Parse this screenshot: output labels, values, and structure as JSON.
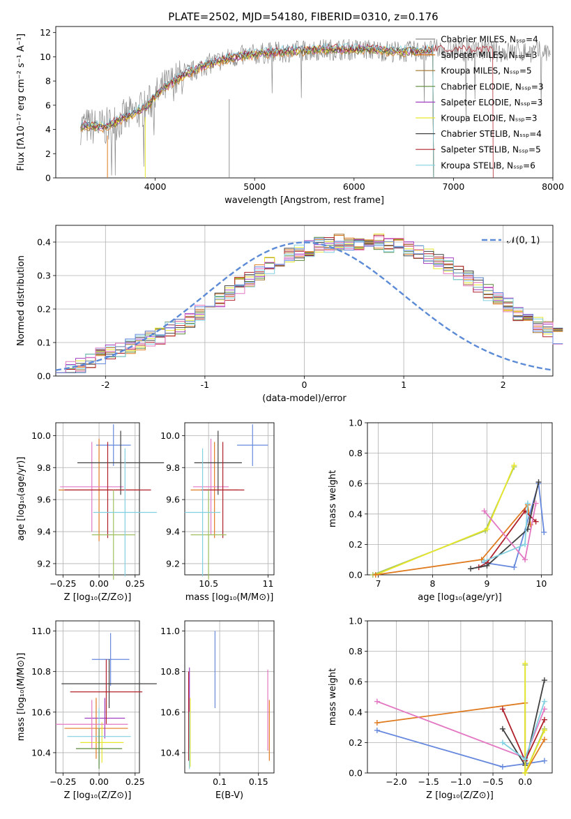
{
  "figure_title": "PLATE=2502, MJD=54180, FIBERID=0310, z=0.176",
  "series_colors": [
    "#888888",
    "#e07a1f",
    "#a0702a",
    "#5a8a3a",
    "#a040c0",
    "#e6e62a",
    "#404040",
    "#b0202a",
    "#80d0e0"
  ],
  "chart_data": [
    {
      "type": "line",
      "id": "spectrum",
      "xlabel": "wavelength [Angstrom, rest frame]",
      "ylabel": "Flux [fλ10⁻¹⁷ erg cm⁻² s⁻¹ A⁻¹]",
      "xlim": [
        3000,
        8000
      ],
      "ylim": [
        0,
        12.5
      ],
      "xticks": [
        4000,
        5000,
        6000,
        7000,
        8000
      ],
      "yticks": [
        0,
        2,
        4,
        6,
        8,
        10,
        12
      ],
      "grid": false,
      "legend_position": "top-right",
      "legend": [
        "Chabrier MILES, Nₛₛₚ=4",
        "Salpeter MILES, Nₛₛₚ=3",
        "Kroupa MILES, Nₛₛₚ=5",
        "Chabrier ELODIE, Nₛₛₚ=3",
        "Salpeter ELODIE, Nₛₛₚ=3",
        "Kroupa ELODIE, Nₛₛₚ=3",
        "Chabrier STELIB, Nₛₛₚ=4",
        "Salpeter STELIB, Nₛₛₚ=5",
        "Kroupa STELIB, Nₛₛₚ=6"
      ],
      "envelope": {
        "x": [
          3250,
          3500,
          3700,
          3900,
          4100,
          4300,
          4500,
          4700,
          4900,
          5100,
          5300,
          5500,
          5700,
          5900,
          6100,
          6300,
          6500,
          6700,
          6900,
          7100,
          7300,
          7500
        ],
        "y": [
          4.3,
          4.2,
          5.0,
          5.8,
          7.5,
          8.5,
          9.3,
          9.8,
          10.1,
          10.3,
          10.4,
          10.5,
          10.6,
          10.6,
          10.6,
          10.5,
          10.4,
          10.5,
          10.6,
          10.5,
          10.5,
          10.4
        ]
      },
      "model_ends": [
        7350,
        6800,
        6800,
        6800,
        6800,
        6800,
        6800,
        7400,
        6800
      ]
    },
    {
      "type": "bar",
      "id": "residuals",
      "xlabel": "(data-model)/error",
      "ylabel": "Normed distribution",
      "xlim": [
        -2.5,
        2.5
      ],
      "ylim": [
        0,
        0.45
      ],
      "xticks": [
        -2,
        -1,
        0,
        1,
        2
      ],
      "yticks": [
        0.0,
        0.1,
        0.2,
        0.3,
        0.4
      ],
      "grid": true,
      "legend_position": "top-right",
      "legend": [
        "𝒩(0, 1)"
      ],
      "reference_curve": "gaussian(0,1)",
      "bin_width": 0.1,
      "histogram": [
        0.02,
        0.02,
        0.03,
        0.05,
        0.06,
        0.07,
        0.08,
        0.09,
        0.1,
        0.11,
        0.12,
        0.14,
        0.15,
        0.17,
        0.19,
        0.21,
        0.23,
        0.25,
        0.27,
        0.29,
        0.31,
        0.33,
        0.34,
        0.36,
        0.37,
        0.38,
        0.39,
        0.39,
        0.4,
        0.4,
        0.4,
        0.4,
        0.4,
        0.39,
        0.39,
        0.38,
        0.37,
        0.36,
        0.34,
        0.33,
        0.31,
        0.29,
        0.27,
        0.25,
        0.23,
        0.21,
        0.19,
        0.17,
        0.15,
        0.14,
        0.12
      ]
    },
    {
      "type": "scatter",
      "id": "age_vs_Z",
      "xlabel": "Z [log₁₀(Z/Z⊙)]",
      "ylabel": "age  [log₁₀(age/yr)]",
      "xlim": [
        -0.3,
        0.28
      ],
      "ylim": [
        9.13,
        10.08
      ],
      "xticks": [
        -0.25,
        0.0,
        0.25
      ],
      "xtick_labels": [
        "−0.25",
        "0.00",
        "0.25"
      ],
      "yticks": [
        9.2,
        9.4,
        9.6,
        9.8,
        10.0
      ],
      "grid": true,
      "points": [
        {
          "x": 0.1,
          "y": 9.94,
          "xerr": 0.12,
          "yerr": 0.13,
          "color": "#6688dd"
        },
        {
          "x": 0.0,
          "y": 9.66,
          "xerr": 0.28,
          "yerr": 0.32,
          "color": "#e07a1f"
        },
        {
          "x": -0.05,
          "y": 9.68,
          "xerr": 0.22,
          "yerr": 0.28,
          "color": "#e377c2"
        },
        {
          "x": 0.15,
          "y": 9.83,
          "xerr": 0.3,
          "yerr": 0.2,
          "color": "#404040"
        },
        {
          "x": 0.06,
          "y": 9.66,
          "xerr": 0.3,
          "yerr": 0.3,
          "color": "#b0202a"
        },
        {
          "x": 0.1,
          "y": 9.38,
          "xerr": 0.15,
          "yerr": 0.28,
          "color": "#a0c060"
        },
        {
          "x": 0.18,
          "y": 9.52,
          "xerr": 0.22,
          "yerr": 0.4,
          "color": "#80d0e0"
        }
      ]
    },
    {
      "type": "scatter",
      "id": "age_vs_mass",
      "xlabel": "mass [log₁₀(M/M⊙)]",
      "ylabel": "",
      "xlim": [
        10.3,
        11.05
      ],
      "ylim": [
        9.13,
        10.08
      ],
      "xticks": [
        10.5,
        11.0
      ],
      "yticks": [
        9.2,
        9.4,
        9.6,
        9.8,
        10.0
      ],
      "grid": true,
      "points": [
        {
          "x": 10.87,
          "y": 9.94,
          "xerr": 0.13,
          "yerr": 0.13,
          "color": "#6688dd"
        },
        {
          "x": 10.55,
          "y": 9.66,
          "xerr": 0.2,
          "yerr": 0.3,
          "color": "#e07a1f"
        },
        {
          "x": 10.52,
          "y": 9.68,
          "xerr": 0.15,
          "yerr": 0.3,
          "color": "#e377c2"
        },
        {
          "x": 10.58,
          "y": 9.83,
          "xerr": 0.2,
          "yerr": 0.2,
          "color": "#404040"
        },
        {
          "x": 10.62,
          "y": 9.66,
          "xerr": 0.18,
          "yerr": 0.3,
          "color": "#b0202a"
        },
        {
          "x": 10.5,
          "y": 9.38,
          "xerr": 0.15,
          "yerr": 0.28,
          "color": "#a0c060"
        },
        {
          "x": 10.45,
          "y": 9.52,
          "xerr": 0.15,
          "yerr": 0.4,
          "color": "#80d0e0"
        }
      ]
    },
    {
      "type": "line",
      "id": "weight_vs_age",
      "xlabel": "age  [log₁₀(age/yr)]",
      "ylabel": "mass weight",
      "xlim": [
        6.8,
        10.2
      ],
      "ylim": [
        0,
        1.0
      ],
      "xticks": [
        7,
        8,
        9,
        10
      ],
      "yticks": [
        0.0,
        0.2,
        0.4,
        0.6,
        0.8,
        1.0
      ],
      "grid": true,
      "series": [
        {
          "color": "#a0c060",
          "x": [
            6.9,
            8.97,
            9.5
          ],
          "y": [
            0.0,
            0.29,
            0.71
          ]
        },
        {
          "color": "#e6e62a",
          "x": [
            6.95,
            9.0,
            9.5
          ],
          "y": [
            0.0,
            0.3,
            0.72
          ]
        },
        {
          "color": "#e07a1f",
          "x": [
            6.95,
            8.9,
            9.75,
            9.8
          ],
          "y": [
            0.0,
            0.1,
            0.46,
            0.33
          ]
        },
        {
          "color": "#6688dd",
          "x": [
            8.95,
            9.5,
            9.95,
            10.05
          ],
          "y": [
            0.08,
            0.05,
            0.6,
            0.28
          ]
        },
        {
          "color": "#b0202a",
          "x": [
            8.85,
            9.0,
            9.7,
            9.9
          ],
          "y": [
            0.05,
            0.08,
            0.42,
            0.35
          ]
        },
        {
          "color": "#404040",
          "x": [
            8.7,
            9.0,
            9.75,
            9.95
          ],
          "y": [
            0.04,
            0.06,
            0.3,
            0.61
          ]
        },
        {
          "color": "#e377c2",
          "x": [
            8.95,
            9.7,
            9.9
          ],
          "y": [
            0.42,
            0.1,
            0.47
          ]
        },
        {
          "color": "#80d0e0",
          "x": [
            8.95,
            9.7,
            9.75
          ],
          "y": [
            0.09,
            0.2,
            0.47
          ]
        }
      ]
    },
    {
      "type": "scatter",
      "id": "mass_vs_Z",
      "xlabel": "Z [log₁₀(Z/Z⊙)]",
      "ylabel": "mass [log₁₀(M/M⊙)]",
      "xlim": [
        -0.3,
        0.28
      ],
      "ylim": [
        10.3,
        11.05
      ],
      "xticks": [
        -0.25,
        0.0,
        0.25
      ],
      "xtick_labels": [
        "−0.25",
        "0.00",
        "0.25"
      ],
      "yticks": [
        10.4,
        10.6,
        10.8,
        11.0
      ],
      "grid": true,
      "points": [
        {
          "x": 0.08,
          "y": 10.86,
          "xerr": 0.13,
          "yerr": 0.13,
          "color": "#6688dd"
        },
        {
          "x": -0.02,
          "y": 10.52,
          "xerr": 0.22,
          "yerr": 0.15,
          "color": "#e07a1f"
        },
        {
          "x": 0.04,
          "y": 10.57,
          "xerr": 0.14,
          "yerr": 0.1,
          "color": "#a040c0"
        },
        {
          "x": 0.07,
          "y": 10.74,
          "xerr": 0.33,
          "yerr": 0.12,
          "color": "#404040"
        },
        {
          "x": 0.05,
          "y": 10.7,
          "xerr": 0.25,
          "yerr": 0.16,
          "color": "#b0202a"
        },
        {
          "x": 0.02,
          "y": 10.45,
          "xerr": 0.15,
          "yerr": 0.1,
          "color": "#e6e62a"
        },
        {
          "x": 0.0,
          "y": 10.48,
          "xerr": 0.22,
          "yerr": 0.14,
          "color": "#80d0e0"
        },
        {
          "x": 0.0,
          "y": 10.42,
          "xerr": 0.16,
          "yerr": 0.1,
          "color": "#5a8a3a"
        },
        {
          "x": -0.05,
          "y": 10.54,
          "xerr": 0.25,
          "yerr": 0.12,
          "color": "#e377c2"
        }
      ]
    },
    {
      "type": "scatter",
      "id": "mass_vs_ebv",
      "xlabel": "E(B-V)",
      "ylabel": "",
      "xlim": [
        0.055,
        0.17
      ],
      "ylim": [
        10.3,
        11.05
      ],
      "xticks": [
        0.1,
        0.15
      ],
      "yticks": [
        10.4,
        10.6,
        10.8,
        11.0
      ],
      "grid": true,
      "points": [
        {
          "x": 0.094,
          "y": 10.81,
          "xerr": 0,
          "yerr": 0.19,
          "color": "#6688dd"
        },
        {
          "x": 0.164,
          "y": 10.51,
          "xerr": 0,
          "yerr": 0.15,
          "color": "#e07a1f"
        },
        {
          "x": 0.162,
          "y": 10.61,
          "xerr": 0,
          "yerr": 0.2,
          "color": "#e377c2"
        },
        {
          "x": 0.06,
          "y": 10.58,
          "xerr": 0,
          "yerr": 0.22,
          "color": "#b0202a"
        },
        {
          "x": 0.061,
          "y": 10.62,
          "xerr": 0,
          "yerr": 0.2,
          "color": "#a040c0"
        },
        {
          "x": 0.062,
          "y": 10.5,
          "xerr": 0,
          "yerr": 0.17,
          "color": "#e6e62a"
        },
        {
          "x": 0.061,
          "y": 10.46,
          "xerr": 0,
          "yerr": 0.14,
          "color": "#80d0e0"
        }
      ]
    },
    {
      "type": "line",
      "id": "weight_vs_Z",
      "xlabel": "Z [log₁₀(Z/Z⊙)]",
      "ylabel": "mass weight",
      "xlim": [
        -2.45,
        0.42
      ],
      "ylim": [
        0,
        1.0
      ],
      "xticks": [
        -2.0,
        -1.5,
        -1.0,
        -0.5,
        0.0
      ],
      "xtick_labels": [
        "−2.0",
        "−1.5",
        "−1.0",
        "−0.5",
        "0.0"
      ],
      "yticks": [
        0.0,
        0.2,
        0.4,
        0.6,
        0.8,
        1.0
      ],
      "grid": true,
      "series": [
        {
          "color": "#6688dd",
          "x": [
            -2.3,
            -0.35,
            0.0,
            0.3
          ],
          "y": [
            0.28,
            0.04,
            0.06,
            0.08
          ]
        },
        {
          "color": "#e07a1f",
          "x": [
            -2.3,
            0.0,
            0.0,
            0.3
          ],
          "y": [
            0.33,
            0.46,
            0.0,
            0.22
          ]
        },
        {
          "color": "#e377c2",
          "x": [
            -2.3,
            0.0,
            0.3
          ],
          "y": [
            0.47,
            0.1,
            0.42
          ]
        },
        {
          "color": "#404040",
          "x": [
            -0.35,
            0.0,
            0.3
          ],
          "y": [
            0.29,
            0.05,
            0.61
          ]
        },
        {
          "color": "#b0202a",
          "x": [
            -0.35,
            0.0,
            0.3
          ],
          "y": [
            0.42,
            0.08,
            0.35
          ]
        },
        {
          "color": "#a0c060",
          "x": [
            0.0,
            0.0,
            0.3
          ],
          "y": [
            0.71,
            0.0,
            0.29
          ]
        },
        {
          "color": "#e6e62a",
          "x": [
            0.0,
            0.0,
            0.3
          ],
          "y": [
            0.72,
            0.0,
            0.28
          ]
        },
        {
          "color": "#80d0e0",
          "x": [
            -0.35,
            0.0,
            0.3
          ],
          "y": [
            0.2,
            0.09,
            0.47
          ]
        }
      ]
    }
  ]
}
